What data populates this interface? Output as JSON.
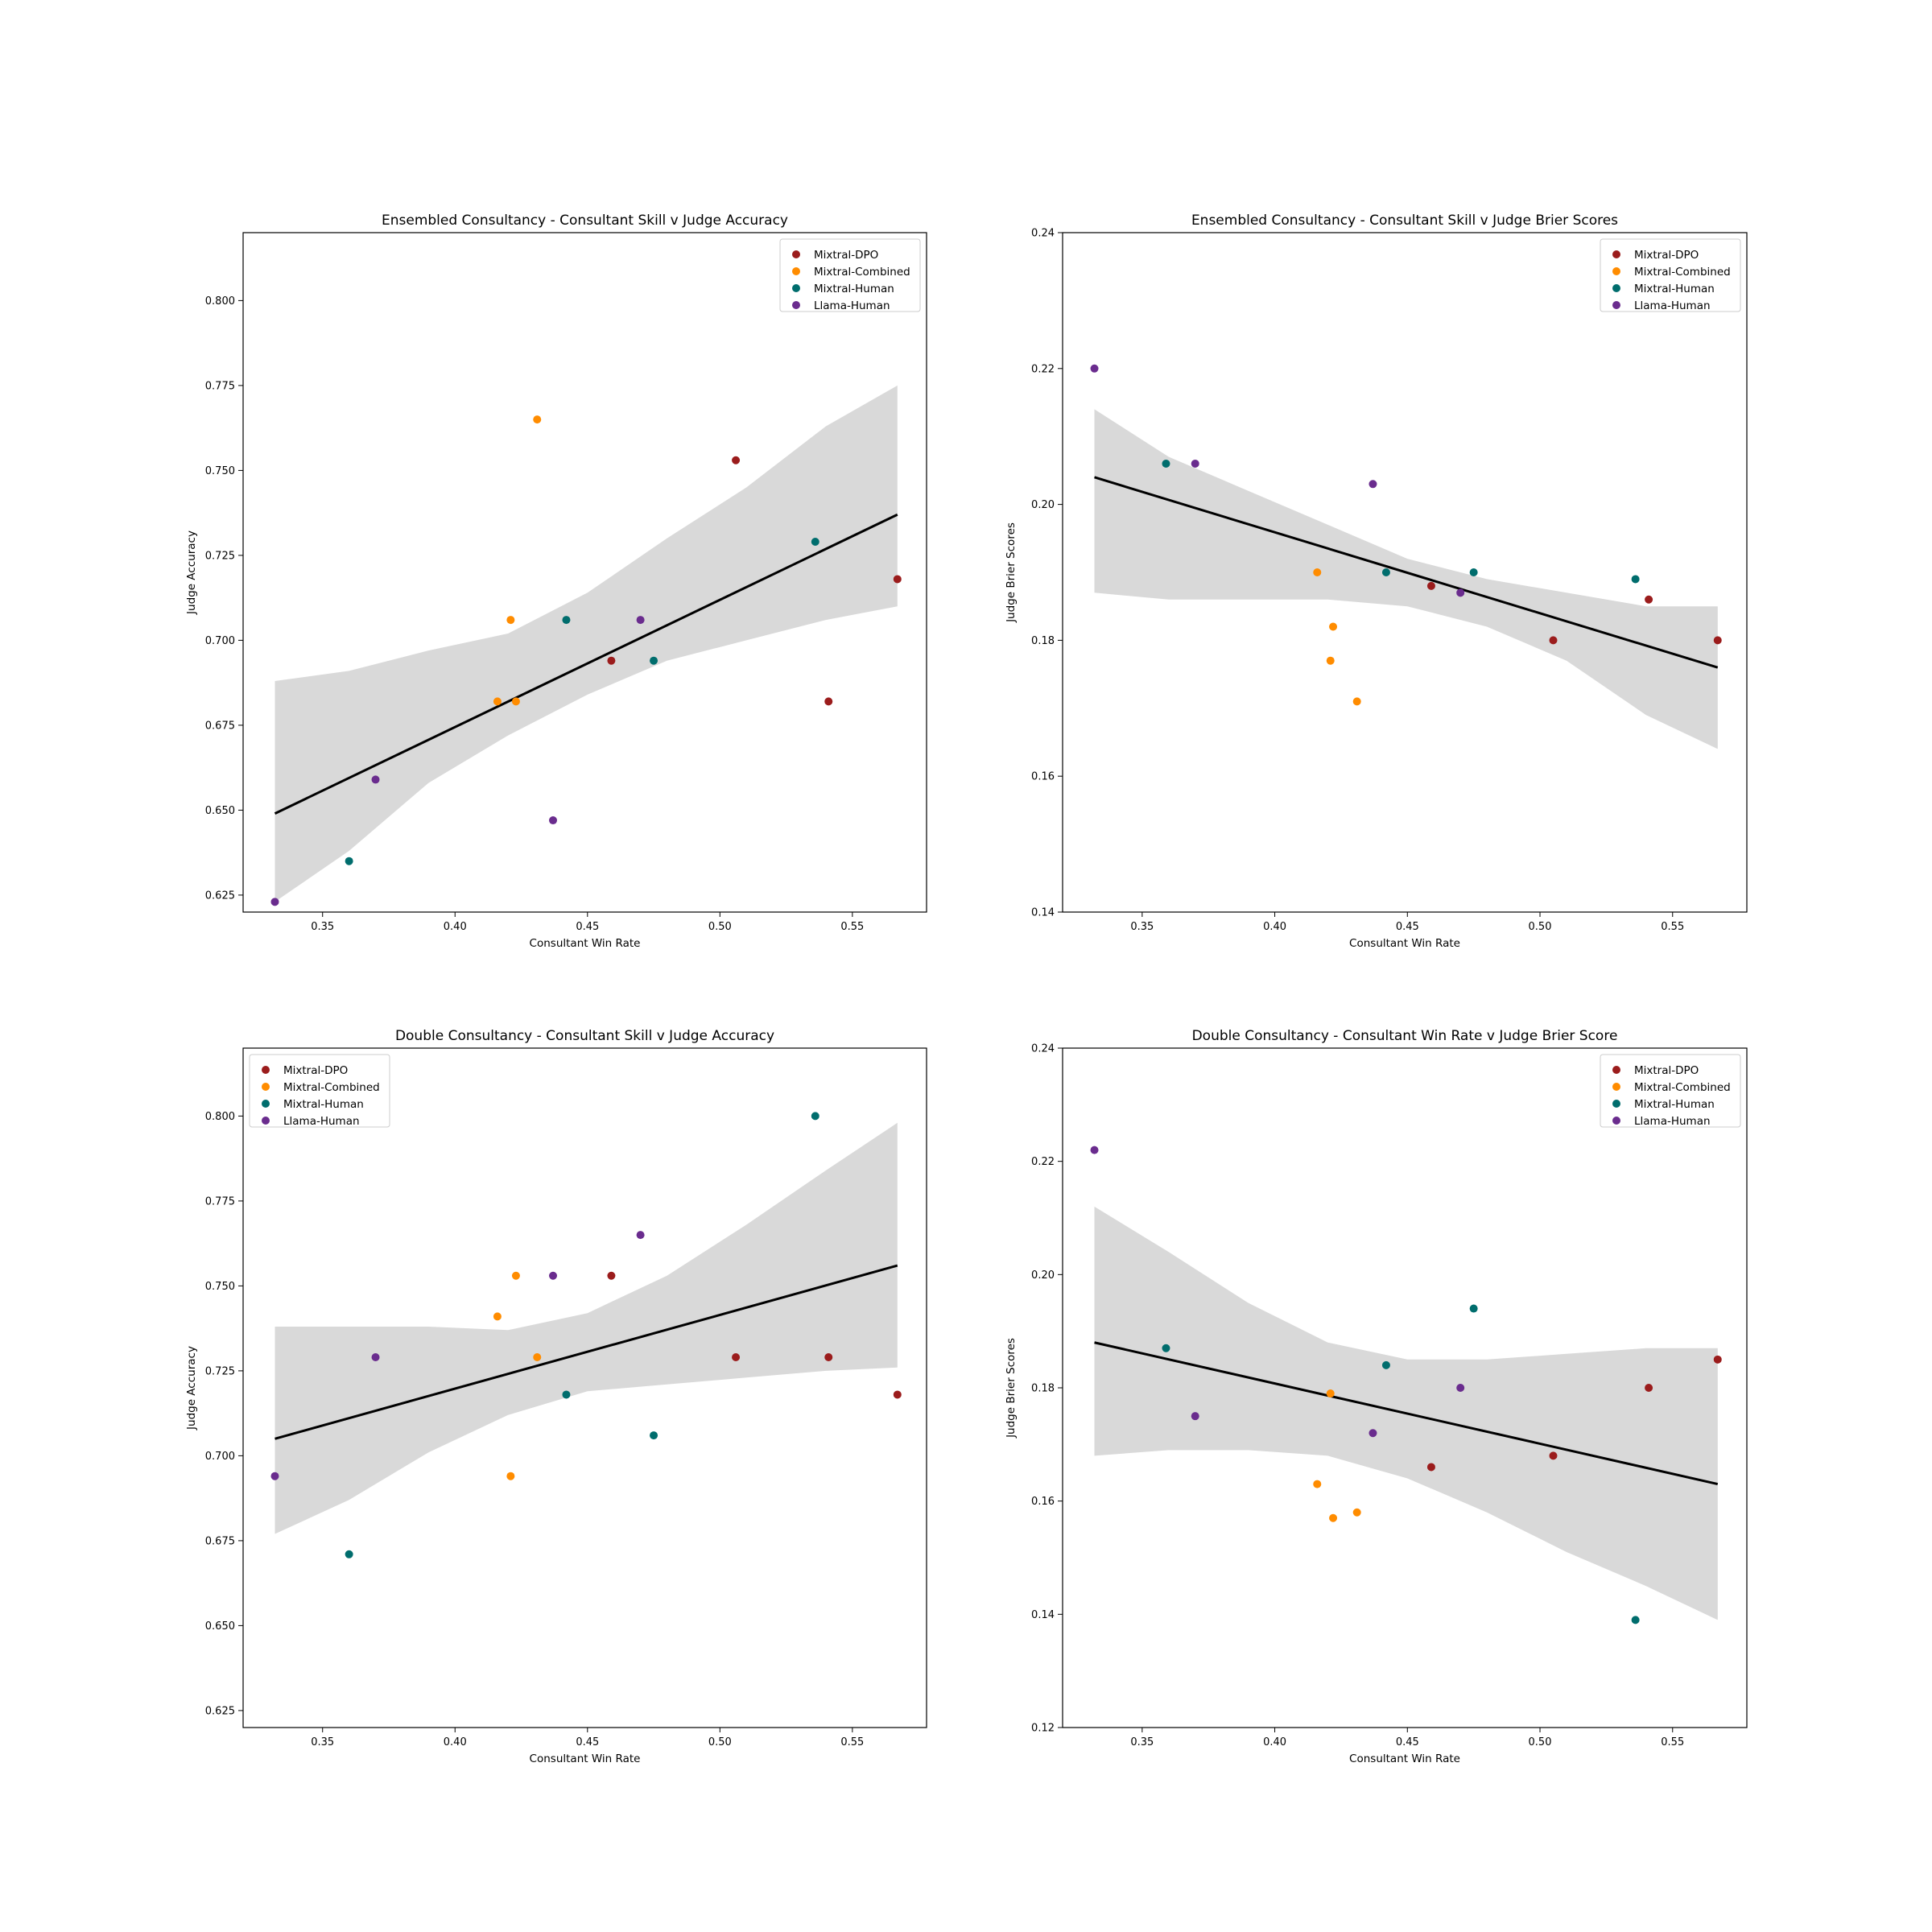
{
  "series_colors": {
    "Mixtral-DPO": "#9b1c1c",
    "Mixtral-Combined": "#ff8c00",
    "Mixtral-Human": "#006d6d",
    "Llama-Human": "#6a2c8e"
  },
  "band_color": "#d9d9d9",
  "chart_data": [
    {
      "type": "scatter",
      "title": "Ensembled Consultancy - Consultant Skill v Judge Accuracy",
      "xlabel": "Consultant Win Rate",
      "ylabel": "Judge Accuracy",
      "xlim": [
        0.32,
        0.578
      ],
      "ylim": [
        0.62,
        0.82
      ],
      "xticks": [
        "0.35",
        "0.40",
        "0.45",
        "0.50",
        "0.55"
      ],
      "yticks": [
        "0.625",
        "0.650",
        "0.675",
        "0.700",
        "0.725",
        "0.750",
        "0.775",
        "0.800"
      ],
      "legend_position": "top-right",
      "series": [
        {
          "name": "Mixtral-DPO",
          "points": [
            [
              0.459,
              0.694
            ],
            [
              0.506,
              0.753
            ],
            [
              0.541,
              0.682
            ],
            [
              0.567,
              0.718
            ]
          ]
        },
        {
          "name": "Mixtral-Combined",
          "points": [
            [
              0.416,
              0.682
            ],
            [
              0.421,
              0.706
            ],
            [
              0.423,
              0.682
            ],
            [
              0.431,
              0.765
            ]
          ]
        },
        {
          "name": "Mixtral-Human",
          "points": [
            [
              0.36,
              0.635
            ],
            [
              0.442,
              0.706
            ],
            [
              0.475,
              0.694
            ],
            [
              0.536,
              0.729
            ]
          ]
        },
        {
          "name": "Llama-Human",
          "points": [
            [
              0.332,
              0.623
            ],
            [
              0.37,
              0.659
            ],
            [
              0.437,
              0.647
            ],
            [
              0.47,
              0.706
            ]
          ]
        }
      ],
      "fit_line": [
        [
          0.332,
          0.649
        ],
        [
          0.567,
          0.737
        ]
      ],
      "band": {
        "x": [
          0.332,
          0.36,
          0.39,
          0.42,
          0.45,
          0.48,
          0.51,
          0.54,
          0.567
        ],
        "upper": [
          0.688,
          0.691,
          0.697,
          0.702,
          0.714,
          0.73,
          0.745,
          0.763,
          0.775
        ],
        "lower": [
          0.623,
          0.638,
          0.658,
          0.672,
          0.684,
          0.694,
          0.7,
          0.706,
          0.71
        ]
      }
    },
    {
      "type": "scatter",
      "title": "Ensembled Consultancy - Consultant Skill v Judge Brier Scores",
      "xlabel": "Consultant Win Rate",
      "ylabel": "Judge Brier Scores",
      "xlim": [
        0.32,
        0.578
      ],
      "ylim": [
        0.14,
        0.24
      ],
      "xticks": [
        "0.35",
        "0.40",
        "0.45",
        "0.50",
        "0.55"
      ],
      "yticks": [
        "0.14",
        "0.16",
        "0.18",
        "0.20",
        "0.22",
        "0.24"
      ],
      "legend_position": "top-right",
      "series": [
        {
          "name": "Mixtral-DPO",
          "points": [
            [
              0.459,
              0.188
            ],
            [
              0.505,
              0.18
            ],
            [
              0.541,
              0.186
            ],
            [
              0.567,
              0.18
            ]
          ]
        },
        {
          "name": "Mixtral-Combined",
          "points": [
            [
              0.416,
              0.19
            ],
            [
              0.421,
              0.177
            ],
            [
              0.422,
              0.182
            ],
            [
              0.431,
              0.171
            ]
          ]
        },
        {
          "name": "Mixtral-Human",
          "points": [
            [
              0.359,
              0.206
            ],
            [
              0.442,
              0.19
            ],
            [
              0.475,
              0.19
            ],
            [
              0.536,
              0.189
            ]
          ]
        },
        {
          "name": "Llama-Human",
          "points": [
            [
              0.332,
              0.22
            ],
            [
              0.37,
              0.206
            ],
            [
              0.437,
              0.203
            ],
            [
              0.47,
              0.187
            ]
          ]
        }
      ],
      "fit_line": [
        [
          0.332,
          0.204
        ],
        [
          0.567,
          0.176
        ]
      ],
      "band": {
        "x": [
          0.332,
          0.36,
          0.39,
          0.42,
          0.45,
          0.48,
          0.51,
          0.54,
          0.567
        ],
        "upper": [
          0.214,
          0.207,
          0.202,
          0.197,
          0.192,
          0.189,
          0.187,
          0.185,
          0.185
        ],
        "lower": [
          0.187,
          0.186,
          0.186,
          0.186,
          0.185,
          0.182,
          0.177,
          0.169,
          0.164
        ]
      }
    },
    {
      "type": "scatter",
      "title": "Double Consultancy - Consultant Skill v Judge Accuracy",
      "xlabel": "Consultant Win Rate",
      "ylabel": "Judge Accuracy",
      "xlim": [
        0.32,
        0.578
      ],
      "ylim": [
        0.62,
        0.82
      ],
      "xticks": [
        "0.35",
        "0.40",
        "0.45",
        "0.50",
        "0.55"
      ],
      "yticks": [
        "0.625",
        "0.650",
        "0.675",
        "0.700",
        "0.725",
        "0.750",
        "0.775",
        "0.800"
      ],
      "legend_position": "top-left",
      "series": [
        {
          "name": "Mixtral-DPO",
          "points": [
            [
              0.459,
              0.753
            ],
            [
              0.506,
              0.729
            ],
            [
              0.541,
              0.729
            ],
            [
              0.567,
              0.718
            ]
          ]
        },
        {
          "name": "Mixtral-Combined",
          "points": [
            [
              0.416,
              0.741
            ],
            [
              0.421,
              0.694
            ],
            [
              0.423,
              0.753
            ],
            [
              0.431,
              0.729
            ]
          ]
        },
        {
          "name": "Mixtral-Human",
          "points": [
            [
              0.36,
              0.671
            ],
            [
              0.442,
              0.718
            ],
            [
              0.475,
              0.706
            ],
            [
              0.536,
              0.8
            ]
          ]
        },
        {
          "name": "Llama-Human",
          "points": [
            [
              0.332,
              0.694
            ],
            [
              0.37,
              0.729
            ],
            [
              0.437,
              0.753
            ],
            [
              0.47,
              0.765
            ]
          ]
        }
      ],
      "fit_line": [
        [
          0.332,
          0.705
        ],
        [
          0.567,
          0.756
        ]
      ],
      "band": {
        "x": [
          0.332,
          0.36,
          0.39,
          0.42,
          0.45,
          0.48,
          0.51,
          0.54,
          0.567
        ],
        "upper": [
          0.738,
          0.738,
          0.738,
          0.737,
          0.742,
          0.753,
          0.768,
          0.784,
          0.798
        ],
        "lower": [
          0.677,
          0.687,
          0.701,
          0.712,
          0.719,
          0.721,
          0.723,
          0.725,
          0.726
        ]
      }
    },
    {
      "type": "scatter",
      "title": "Double Consultancy - Consultant Win Rate v Judge Brier Score",
      "xlabel": "Consultant Win Rate",
      "ylabel": "Judge Brier Scores",
      "xlim": [
        0.32,
        0.578
      ],
      "ylim": [
        0.12,
        0.24
      ],
      "xticks": [
        "0.35",
        "0.40",
        "0.45",
        "0.50",
        "0.55"
      ],
      "yticks": [
        "0.12",
        "0.14",
        "0.16",
        "0.18",
        "0.20",
        "0.22",
        "0.24"
      ],
      "legend_position": "top-right",
      "series": [
        {
          "name": "Mixtral-DPO",
          "points": [
            [
              0.459,
              0.166
            ],
            [
              0.505,
              0.168
            ],
            [
              0.541,
              0.18
            ],
            [
              0.567,
              0.185
            ]
          ]
        },
        {
          "name": "Mixtral-Combined",
          "points": [
            [
              0.416,
              0.163
            ],
            [
              0.421,
              0.179
            ],
            [
              0.422,
              0.157
            ],
            [
              0.431,
              0.158
            ]
          ]
        },
        {
          "name": "Mixtral-Human",
          "points": [
            [
              0.359,
              0.187
            ],
            [
              0.442,
              0.184
            ],
            [
              0.475,
              0.194
            ],
            [
              0.536,
              0.139
            ]
          ]
        },
        {
          "name": "Llama-Human",
          "points": [
            [
              0.332,
              0.222
            ],
            [
              0.37,
              0.175
            ],
            [
              0.437,
              0.172
            ],
            [
              0.47,
              0.18
            ]
          ]
        }
      ],
      "fit_line": [
        [
          0.332,
          0.188
        ],
        [
          0.567,
          0.163
        ]
      ],
      "band": {
        "x": [
          0.332,
          0.36,
          0.39,
          0.42,
          0.45,
          0.48,
          0.51,
          0.54,
          0.567
        ],
        "upper": [
          0.212,
          0.204,
          0.195,
          0.188,
          0.185,
          0.185,
          0.186,
          0.187,
          0.187
        ],
        "lower": [
          0.168,
          0.169,
          0.169,
          0.168,
          0.164,
          0.158,
          0.151,
          0.145,
          0.139
        ]
      }
    }
  ]
}
